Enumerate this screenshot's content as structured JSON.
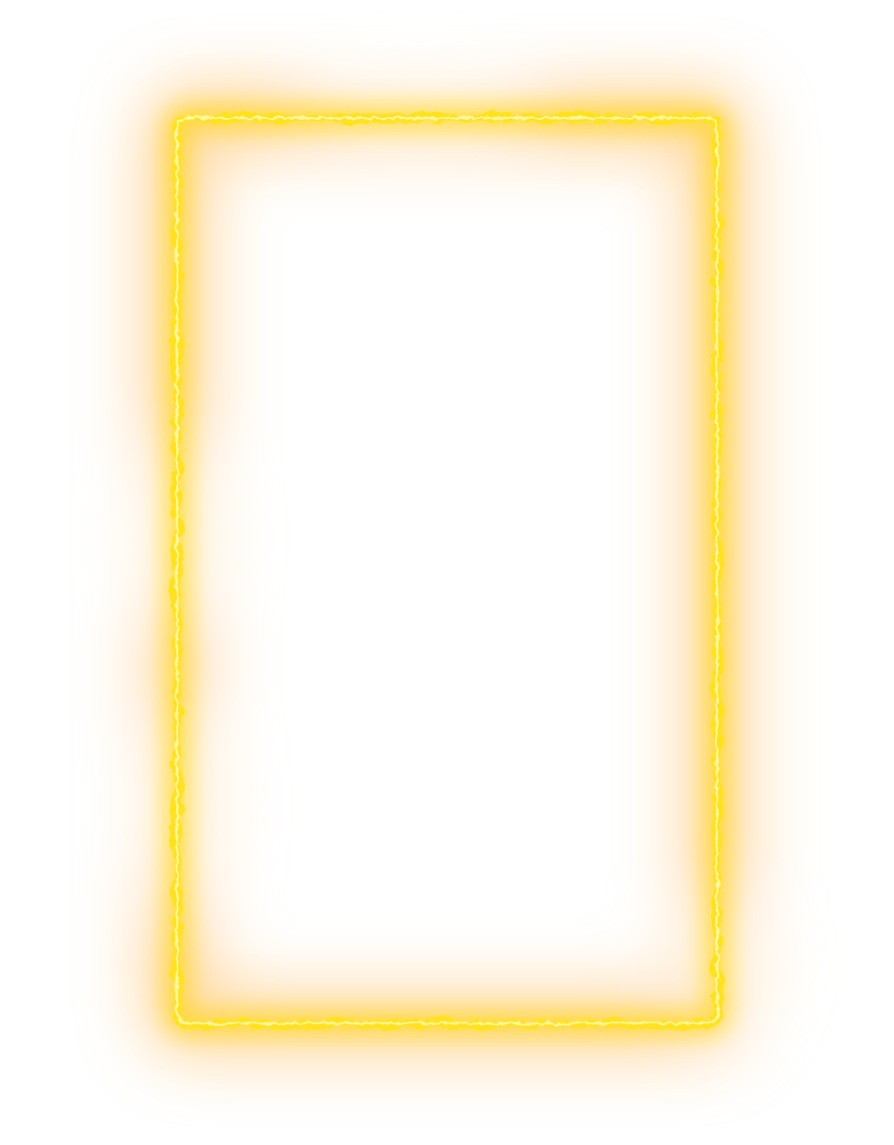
{
  "image": {
    "subject": "glowing-electric-frame",
    "colors": {
      "background": "#ffffff",
      "core_line": "#fff7a8",
      "line": "#ffe21a",
      "inner_glow": "#ffd200",
      "outer_glow": "#ffb347",
      "haze": "#ffe2b8"
    }
  }
}
